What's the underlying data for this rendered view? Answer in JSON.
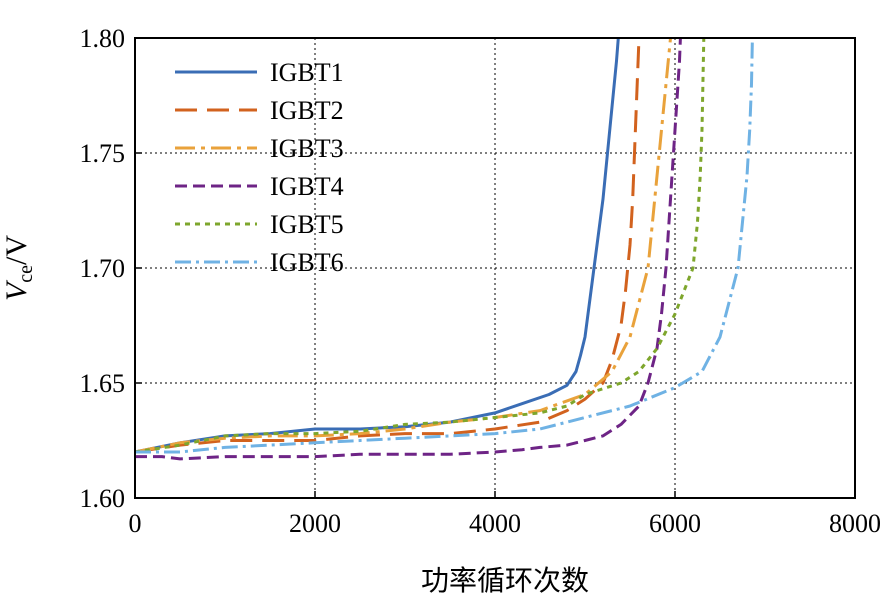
{
  "chart_data": {
    "type": "line",
    "xlabel": "功率循环次数",
    "ylabel": {
      "main": "V",
      "sub": "ce",
      "unit": "/V"
    },
    "xlim": [
      0,
      8000
    ],
    "ylim": [
      1.6,
      1.8
    ],
    "xticks": [
      "0",
      "2000",
      "4000",
      "6000",
      "8000"
    ],
    "yticks": [
      "1.60",
      "1.65",
      "1.70",
      "1.75",
      "1.80"
    ],
    "grid": true,
    "legend_position": "top-left",
    "series": [
      {
        "name": "IGBT1",
        "color": "#3a6db5",
        "dash": "",
        "points": [
          [
            0,
            1.62
          ],
          [
            500,
            1.624
          ],
          [
            1000,
            1.627
          ],
          [
            1500,
            1.628
          ],
          [
            2000,
            1.63
          ],
          [
            2500,
            1.63
          ],
          [
            3000,
            1.631
          ],
          [
            3500,
            1.633
          ],
          [
            4000,
            1.637
          ],
          [
            4300,
            1.641
          ],
          [
            4600,
            1.645
          ],
          [
            4800,
            1.649
          ],
          [
            4900,
            1.655
          ],
          [
            4950,
            1.662
          ],
          [
            5000,
            1.67
          ],
          [
            5050,
            1.685
          ],
          [
            5100,
            1.7
          ],
          [
            5150,
            1.715
          ],
          [
            5200,
            1.73
          ],
          [
            5250,
            1.75
          ],
          [
            5300,
            1.77
          ],
          [
            5350,
            1.79
          ],
          [
            5370,
            1.8
          ]
        ]
      },
      {
        "name": "IGBT2",
        "color": "#d2621e",
        "dash": "22,10",
        "points": [
          [
            0,
            1.62
          ],
          [
            500,
            1.623
          ],
          [
            1000,
            1.625
          ],
          [
            1500,
            1.625
          ],
          [
            2000,
            1.625
          ],
          [
            2500,
            1.627
          ],
          [
            3000,
            1.628
          ],
          [
            3500,
            1.628
          ],
          [
            4000,
            1.63
          ],
          [
            4500,
            1.633
          ],
          [
            4800,
            1.638
          ],
          [
            5000,
            1.643
          ],
          [
            5200,
            1.65
          ],
          [
            5300,
            1.66
          ],
          [
            5400,
            1.675
          ],
          [
            5450,
            1.69
          ],
          [
            5500,
            1.71
          ],
          [
            5530,
            1.73
          ],
          [
            5550,
            1.75
          ],
          [
            5570,
            1.77
          ],
          [
            5590,
            1.79
          ],
          [
            5600,
            1.8
          ]
        ]
      },
      {
        "name": "IGBT3",
        "color": "#e9a23b",
        "dash": "20,6,4,6",
        "points": [
          [
            0,
            1.62
          ],
          [
            500,
            1.624
          ],
          [
            1000,
            1.626
          ],
          [
            1500,
            1.627
          ],
          [
            2000,
            1.627
          ],
          [
            2500,
            1.628
          ],
          [
            3000,
            1.63
          ],
          [
            3500,
            1.633
          ],
          [
            4000,
            1.635
          ],
          [
            4500,
            1.638
          ],
          [
            5000,
            1.645
          ],
          [
            5300,
            1.655
          ],
          [
            5500,
            1.67
          ],
          [
            5600,
            1.685
          ],
          [
            5700,
            1.7
          ],
          [
            5750,
            1.72
          ],
          [
            5800,
            1.74
          ],
          [
            5850,
            1.76
          ],
          [
            5900,
            1.78
          ],
          [
            5950,
            1.8
          ]
        ]
      },
      {
        "name": "IGBT4",
        "color": "#6e2486",
        "dash": "12,6",
        "points": [
          [
            0,
            1.618
          ],
          [
            300,
            1.618
          ],
          [
            500,
            1.617
          ],
          [
            1000,
            1.618
          ],
          [
            1500,
            1.618
          ],
          [
            2000,
            1.618
          ],
          [
            2500,
            1.619
          ],
          [
            3000,
            1.619
          ],
          [
            3500,
            1.619
          ],
          [
            4000,
            1.62
          ],
          [
            4300,
            1.621
          ],
          [
            4500,
            1.622
          ],
          [
            4800,
            1.623
          ],
          [
            5000,
            1.625
          ],
          [
            5200,
            1.627
          ],
          [
            5400,
            1.632
          ],
          [
            5600,
            1.64
          ],
          [
            5700,
            1.65
          ],
          [
            5800,
            1.665
          ],
          [
            5850,
            1.68
          ],
          [
            5900,
            1.7
          ],
          [
            5950,
            1.73
          ],
          [
            6000,
            1.76
          ],
          [
            6050,
            1.79
          ],
          [
            6060,
            1.8
          ]
        ]
      },
      {
        "name": "IGBT5",
        "color": "#7ea62c",
        "dash": "5,5",
        "points": [
          [
            0,
            1.62
          ],
          [
            500,
            1.623
          ],
          [
            1000,
            1.627
          ],
          [
            1500,
            1.628
          ],
          [
            2000,
            1.628
          ],
          [
            2500,
            1.629
          ],
          [
            3000,
            1.632
          ],
          [
            3500,
            1.633
          ],
          [
            4000,
            1.635
          ],
          [
            4500,
            1.637
          ],
          [
            4800,
            1.64
          ],
          [
            5000,
            1.645
          ],
          [
            5400,
            1.65
          ],
          [
            5600,
            1.655
          ],
          [
            5800,
            1.665
          ],
          [
            6000,
            1.68
          ],
          [
            6100,
            1.69
          ],
          [
            6200,
            1.7
          ],
          [
            6250,
            1.72
          ],
          [
            6280,
            1.74
          ],
          [
            6300,
            1.76
          ],
          [
            6310,
            1.78
          ],
          [
            6320,
            1.8
          ]
        ]
      },
      {
        "name": "IGBT6",
        "color": "#6fb2e4",
        "dash": "16,5,3,5",
        "points": [
          [
            0,
            1.62
          ],
          [
            500,
            1.62
          ],
          [
            1000,
            1.622
          ],
          [
            1500,
            1.623
          ],
          [
            2000,
            1.624
          ],
          [
            2500,
            1.625
          ],
          [
            3000,
            1.626
          ],
          [
            3500,
            1.627
          ],
          [
            4000,
            1.628
          ],
          [
            4500,
            1.63
          ],
          [
            5000,
            1.635
          ],
          [
            5500,
            1.64
          ],
          [
            6000,
            1.648
          ],
          [
            6300,
            1.655
          ],
          [
            6500,
            1.67
          ],
          [
            6600,
            1.685
          ],
          [
            6700,
            1.7
          ],
          [
            6750,
            1.72
          ],
          [
            6800,
            1.74
          ],
          [
            6830,
            1.76
          ],
          [
            6850,
            1.78
          ],
          [
            6860,
            1.8
          ]
        ]
      }
    ]
  }
}
